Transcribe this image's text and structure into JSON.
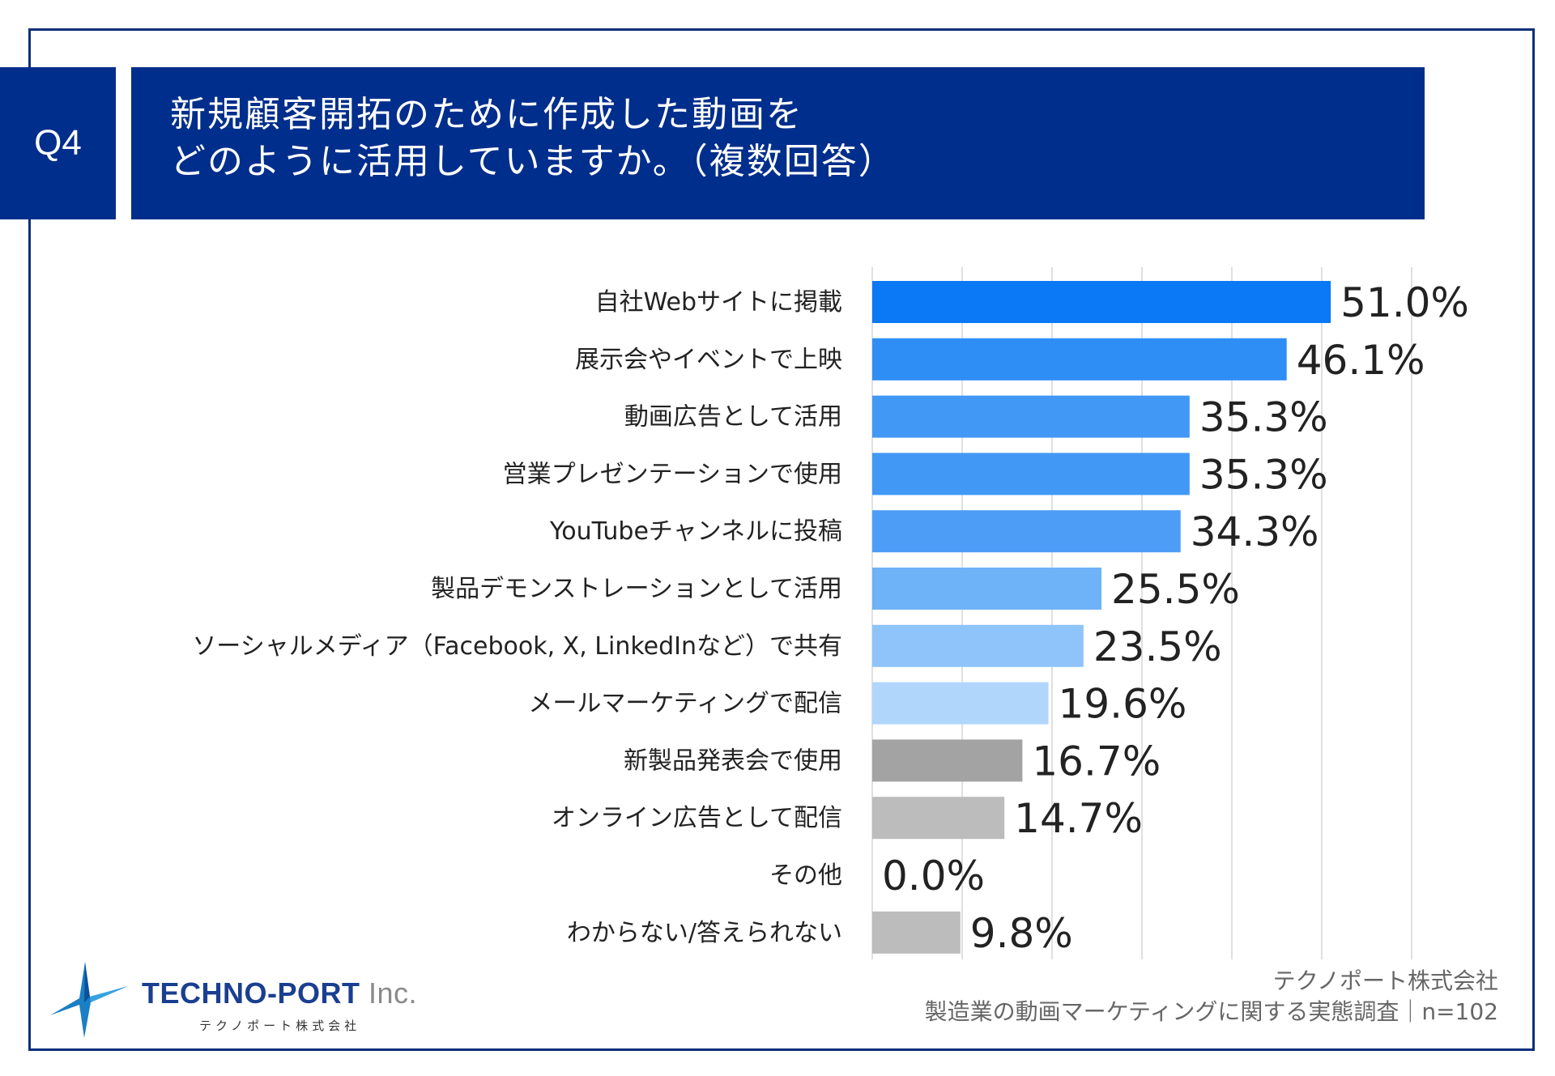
{
  "header": {
    "question_number": "Q4",
    "title_line1": "新規顧客開拓のために作成した動画を",
    "title_line2": "どのように活用していますか。（複数回答）"
  },
  "chart_data": {
    "type": "bar",
    "orientation": "horizontal",
    "title": "新規顧客開拓のために作成した動画をどのように活用していますか。（複数回答）",
    "categories": [
      "自社Webサイトに掲載",
      "展示会やイベントで上映",
      "動画広告として活用",
      "営業プレゼンテーションで使用",
      "YouTubeチャンネルに投稿",
      "製品デモンストレーションとして活用",
      "ソーシャルメディア（Facebook, X, LinkedInなど）で共有",
      "メールマーケティングで配信",
      "新製品発表会で使用",
      "オンライン広告として配信",
      "その他",
      "わからない/答えられない"
    ],
    "values": [
      51.0,
      46.1,
      35.3,
      35.3,
      34.3,
      25.5,
      23.5,
      19.6,
      16.7,
      14.7,
      0.0,
      9.8
    ],
    "value_labels": [
      "51.0%",
      "46.1%",
      "35.3%",
      "35.3%",
      "34.3%",
      "25.5%",
      "23.5%",
      "19.6%",
      "16.7%",
      "14.7%",
      "0.0%",
      "9.8%"
    ],
    "colors": [
      "#0b78f5",
      "#2f8ef5",
      "#4298f5",
      "#4298f5",
      "#4d9df6",
      "#6eb2f8",
      "#8ec4fa",
      "#b1d6fc",
      "#a3a3a3",
      "#bcbcbc",
      "#bcbcbc",
      "#bcbcbc"
    ],
    "xlim": [
      0,
      60
    ],
    "grid_step": 10,
    "grid": true,
    "xlabel": "",
    "ylabel": ""
  },
  "logo": {
    "name_blue": "TECHNO-PORT",
    "name_grey": " Inc.",
    "subtitle": "テクノポート株式会社"
  },
  "source": {
    "line1": "テクノポート株式会社",
    "line2": "製造業の動画マーケティングに関する実態調査｜n=102"
  }
}
